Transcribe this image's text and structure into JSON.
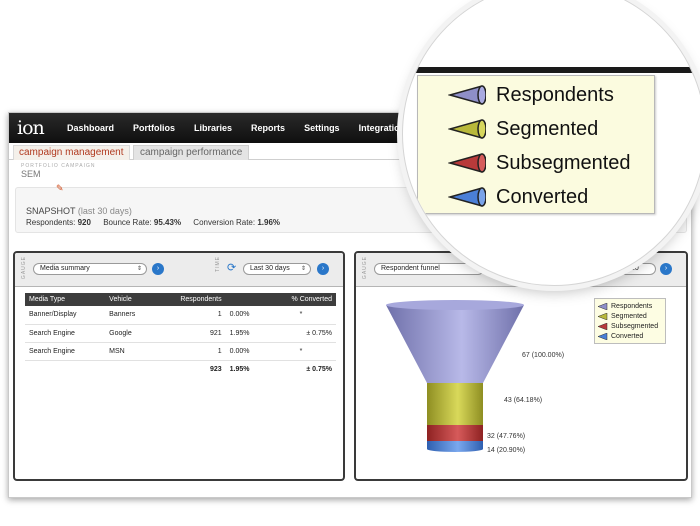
{
  "app": {
    "logo": "ion"
  },
  "nav": {
    "items": [
      "Dashboard",
      "Portfolios",
      "Libraries",
      "Reports",
      "Settings",
      "Integration"
    ]
  },
  "tabs": {
    "active": "campaign management",
    "inactive": "campaign performance"
  },
  "breadcrumb": {
    "small": "PORTFOLIO  CAMPAIGN",
    "current": "SEM"
  },
  "snapshot": {
    "title": "SNAPSHOT",
    "period": "(last 30 days)",
    "respondents_label": "Respondents:",
    "respondents_value": "920",
    "bounce_label": "Bounce Rate:",
    "bounce_value": "95.43%",
    "conversion_label": "Conversion Rate:",
    "conversion_value": "1.96%"
  },
  "left_panel": {
    "gauge_label": "GAUGE",
    "gauge_select": "Media summary",
    "time_label": "TIME",
    "time_select": "Last 30 days",
    "table": {
      "headers": [
        "Media Type",
        "Vehicle",
        "Respondents",
        "",
        "% Converted"
      ],
      "rows": [
        [
          "Banner/Display",
          "Banners",
          "1",
          "0.00%",
          "*"
        ],
        [
          "Search Engine",
          "Google",
          "921",
          "1.95%",
          "± 0.75%"
        ],
        [
          "Search Engine",
          "MSN",
          "1",
          "0.00%",
          "*"
        ]
      ],
      "total": [
        "",
        "",
        "923",
        "1.95%",
        "± 0.75%"
      ]
    }
  },
  "right_panel": {
    "gauge_label": "GAUGE",
    "gauge_select": "Respondent funnel",
    "partial_select": "10",
    "funnel": {
      "levels": [
        {
          "name": "Respondents",
          "value": 67,
          "label": "67 (100.00%)",
          "color": "#8e8fc8"
        },
        {
          "name": "Segmented",
          "value": 43,
          "label": "43 (64.18%)",
          "color": "#b8b83a"
        },
        {
          "name": "Subsegmented",
          "value": 32,
          "label": "32 (47.76%)",
          "color": "#b83a3a"
        },
        {
          "name": "Converted",
          "value": 14,
          "label": "14 (20.90%)",
          "color": "#4a7fd6"
        }
      ]
    },
    "legend": [
      "Respondents",
      "Segmented",
      "Subsegmented",
      "Converted"
    ]
  },
  "zoom_legend": {
    "items": [
      {
        "label": "Respondents",
        "color": "#8e8fc8"
      },
      {
        "label": "Segmented",
        "color": "#b8b83a"
      },
      {
        "label": "Subsegmented",
        "color": "#b83a3a"
      },
      {
        "label": "Converted",
        "color": "#4a7fd6"
      }
    ]
  }
}
